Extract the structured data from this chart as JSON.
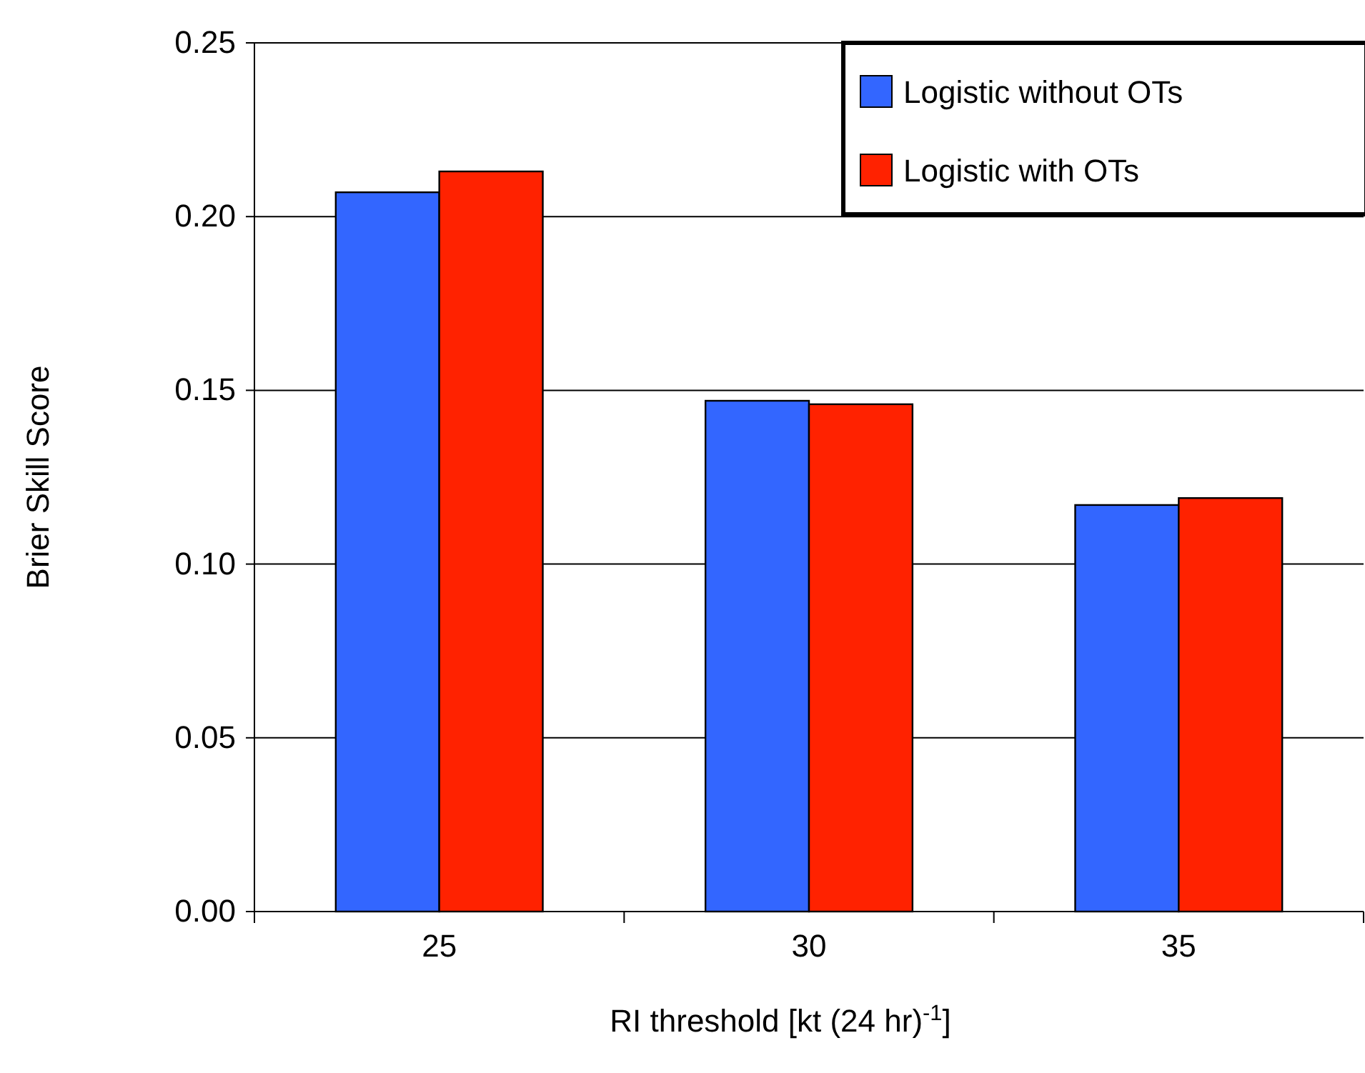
{
  "chart_data": {
    "type": "bar",
    "xlabel": "RI threshold [kt (24 hr)$^{-1}$]",
    "ylabel": "Brier Skill Score",
    "categories": [
      "25",
      "30",
      "35"
    ],
    "series": [
      {
        "name": "Logistic without OTs",
        "color": "#3366ff",
        "values": [
          0.207,
          0.147,
          0.117
        ]
      },
      {
        "name": "Logistic with OTs",
        "color": "#ff2200",
        "values": [
          0.213,
          0.146,
          0.119
        ]
      }
    ],
    "ylim": [
      0,
      0.25
    ],
    "yticks": [
      {
        "value": 0,
        "label": "0.00"
      },
      {
        "value": 0.05,
        "label": "0.05"
      },
      {
        "value": 0.1,
        "label": "0.10"
      },
      {
        "value": 0.15,
        "label": "0.15"
      },
      {
        "value": 0.2,
        "label": "0.20"
      },
      {
        "value": 0.25,
        "label": "0.25"
      }
    ],
    "grid": "y",
    "legend": "top right"
  }
}
